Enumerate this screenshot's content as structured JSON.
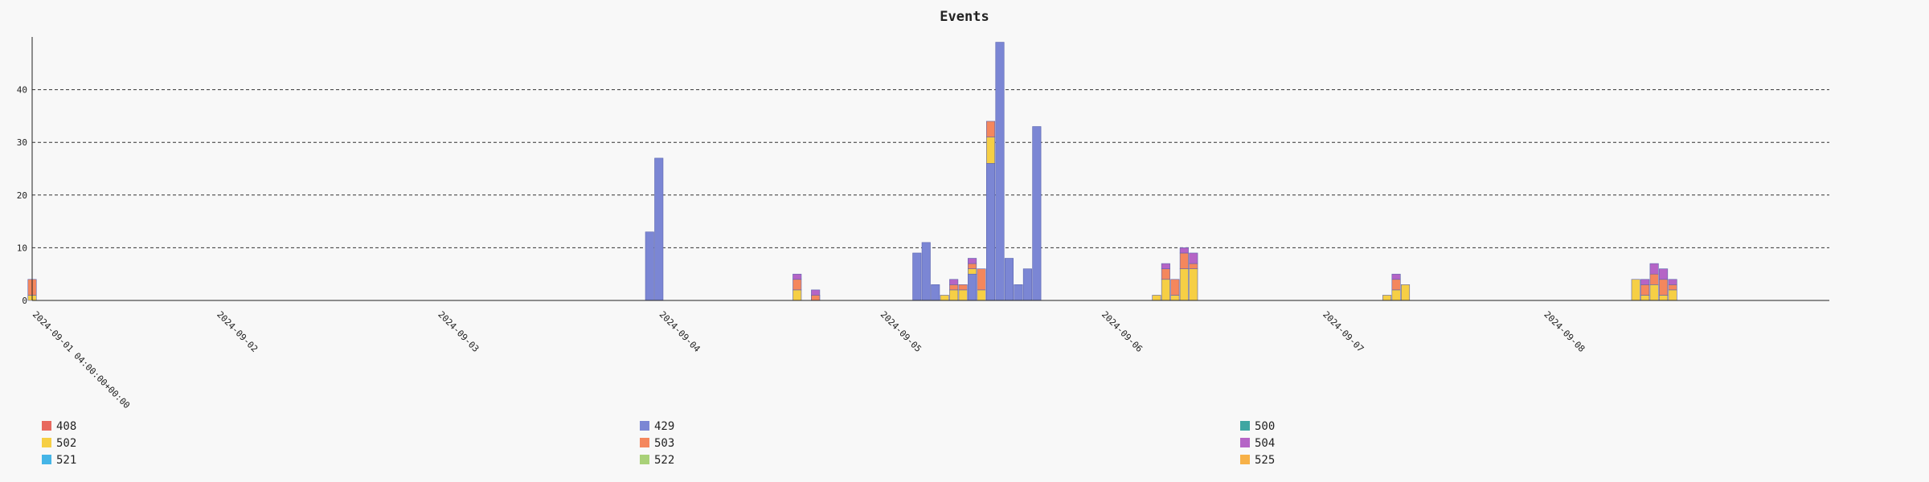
{
  "chart_data": {
    "type": "bar",
    "stacked": true,
    "title": "Events",
    "xlabel": "",
    "ylabel": "",
    "ylim": [
      0,
      50
    ],
    "yticks": [
      0,
      10,
      20,
      30,
      40
    ],
    "grid": "horizontal dashed",
    "legend_position": "bottom",
    "x_type": "time",
    "x_range": [
      "2024-09-01 04:00",
      "2024-09-09 07:00"
    ],
    "bar_width_hours": 1,
    "date_labels": [
      "2024-09-01 04:00:00+00:00",
      "2024-09-02",
      "2024-09-03",
      "2024-09-04",
      "2024-09-05",
      "2024-09-06",
      "2024-09-07",
      "2024-09-08"
    ],
    "date_label_positions": [
      "2024-09-01 04:00",
      "2024-09-02 00:00",
      "2024-09-03 00:00",
      "2024-09-04 00:00",
      "2024-09-05 00:00",
      "2024-09-06 00:00",
      "2024-09-07 00:00",
      "2024-09-08 00:00"
    ],
    "series": [
      {
        "name": "408",
        "color": "#e8695f"
      },
      {
        "name": "429",
        "color": "#7b86d4"
      },
      {
        "name": "500",
        "color": "#3fa6a2"
      },
      {
        "name": "502",
        "color": "#f6cf45"
      },
      {
        "name": "503",
        "color": "#f4875d"
      },
      {
        "name": "504",
        "color": "#b564c6"
      },
      {
        "name": "521",
        "color": "#45b5e7"
      },
      {
        "name": "522",
        "color": "#a9d178"
      },
      {
        "name": "525",
        "color": "#f7b148"
      }
    ],
    "bars": [
      {
        "time": "2024-09-01 04:00",
        "values": {
          "502": 1,
          "503": 3
        }
      },
      {
        "time": "2024-09-03 23:00",
        "values": {
          "429": 13
        }
      },
      {
        "time": "2024-09-04 00:00",
        "values": {
          "429": 27
        }
      },
      {
        "time": "2024-09-04 15:00",
        "values": {
          "502": 2,
          "503": 2,
          "504": 1
        }
      },
      {
        "time": "2024-09-04 17:00",
        "values": {
          "429": 1,
          "504": 1
        }
      },
      {
        "time": "2024-09-04 17:00",
        "values": {
          "503": 1
        }
      },
      {
        "time": "2024-09-05 04:00",
        "values": {
          "429": 9
        }
      },
      {
        "time": "2024-09-05 05:00",
        "values": {
          "429": 11
        }
      },
      {
        "time": "2024-09-05 06:00",
        "values": {
          "429": 3
        }
      },
      {
        "time": "2024-09-05 07:00",
        "values": {
          "502": 1
        }
      },
      {
        "time": "2024-09-05 08:00",
        "values": {
          "502": 2,
          "503": 1,
          "504": 1
        }
      },
      {
        "time": "2024-09-05 09:00",
        "values": {
          "502": 2,
          "503": 1
        }
      },
      {
        "time": "2024-09-05 10:00",
        "values": {
          "429": 5,
          "502": 1,
          "503": 1,
          "504": 1
        }
      },
      {
        "time": "2024-09-05 11:00",
        "values": {
          "502": 2,
          "503": 4
        }
      },
      {
        "time": "2024-09-05 12:00",
        "values": {
          "429": 26,
          "502": 5,
          "503": 3
        }
      },
      {
        "time": "2024-09-05 13:00",
        "values": {
          "429": 49
        }
      },
      {
        "time": "2024-09-05 14:00",
        "values": {
          "429": 8
        }
      },
      {
        "time": "2024-09-05 15:00",
        "values": {
          "429": 3
        }
      },
      {
        "time": "2024-09-05 16:00",
        "values": {
          "429": 6
        }
      },
      {
        "time": "2024-09-05 17:00",
        "values": {
          "429": 33
        }
      },
      {
        "time": "2024-09-06 06:00",
        "values": {
          "502": 1
        }
      },
      {
        "time": "2024-09-06 07:00",
        "values": {
          "502": 4,
          "503": 2,
          "504": 1
        }
      },
      {
        "time": "2024-09-06 08:00",
        "values": {
          "502": 1,
          "503": 3
        }
      },
      {
        "time": "2024-09-06 09:00",
        "values": {
          "502": 6,
          "503": 3,
          "504": 1
        }
      },
      {
        "time": "2024-09-06 10:00",
        "values": {
          "502": 6,
          "503": 1,
          "504": 2
        }
      },
      {
        "time": "2024-09-07 07:00",
        "values": {
          "502": 1
        }
      },
      {
        "time": "2024-09-07 08:00",
        "values": {
          "502": 2,
          "503": 2,
          "504": 1
        }
      },
      {
        "time": "2024-09-07 09:00",
        "values": {
          "502": 3
        }
      },
      {
        "time": "2024-09-08 10:00",
        "values": {
          "502": 4
        }
      },
      {
        "time": "2024-09-08 11:00",
        "values": {
          "502": 1,
          "503": 2,
          "504": 1
        }
      },
      {
        "time": "2024-09-08 12:00",
        "values": {
          "502": 3,
          "503": 2,
          "504": 2
        }
      },
      {
        "time": "2024-09-08 13:00",
        "values": {
          "502": 1,
          "503": 3,
          "504": 2
        }
      },
      {
        "time": "2024-09-08 14:00",
        "values": {
          "502": 2,
          "503": 1,
          "504": 1
        }
      }
    ]
  }
}
